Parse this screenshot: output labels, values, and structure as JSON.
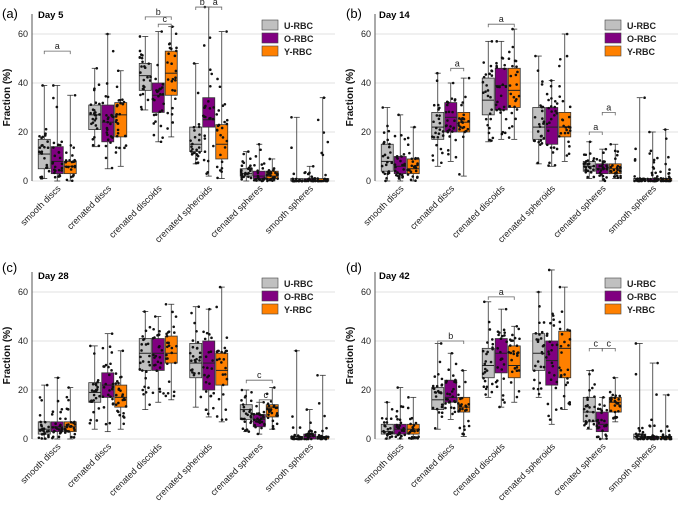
{
  "chart_data": [
    {
      "type": "box",
      "panel_label": "(a)",
      "title": "Day 5",
      "ylabel": "Fraction (%)",
      "ylim": [
        0,
        70
      ],
      "yticks": [
        0,
        20,
        40,
        60
      ],
      "grid": true,
      "legend_position": "top-right",
      "categories": [
        "smooth discs",
        "crenated discs",
        "crenated discoids",
        "crenated spheroids",
        "crenated spheres",
        "smooth spheres"
      ],
      "series": [
        {
          "name": "U-RBC",
          "color": "#c0c0c0",
          "stats": [
            [
              1,
              5,
              11,
              17,
              39
            ],
            [
              14,
              21,
              27,
              31,
              46
            ],
            [
              29,
              37,
              43,
              48,
              59
            ],
            [
              7,
              12,
              15,
              22,
              48
            ],
            [
              0,
              2,
              3,
              5,
              12
            ],
            [
              0,
              0,
              0,
              1,
              26
            ]
          ]
        },
        {
          "name": "O-RBC",
          "color": "#800080",
          "stats": [
            [
              0,
              3,
              8,
              14,
              39
            ],
            [
              5,
              16,
              24,
              31,
              60
            ],
            [
              16,
              28,
              35,
              40,
              61
            ],
            [
              2,
              22,
              25,
              34,
              71
            ],
            [
              0,
              1,
              2,
              4,
              15
            ],
            [
              0,
              0,
              0,
              1,
              6
            ]
          ]
        },
        {
          "name": "Y-RBC",
          "color": "#ff8000",
          "stats": [
            [
              0,
              3,
              6,
              8,
              35
            ],
            [
              6,
              18,
              27,
              32,
              45
            ],
            [
              18,
              35,
              44,
              53,
              63
            ],
            [
              1,
              9,
              15,
              23,
              61
            ],
            [
              0,
              1,
              2,
              4,
              9
            ],
            [
              0,
              0,
              0,
              1,
              34
            ]
          ]
        }
      ],
      "annotations": [
        {
          "label": "a",
          "category": "smooth discs",
          "between": [
            "U-RBC",
            "Y-RBC"
          ],
          "y": 53
        },
        {
          "label": "b",
          "category": "crenated discoids",
          "between": [
            "U-RBC",
            "Y-RBC"
          ],
          "y": 67
        },
        {
          "label": "c",
          "category": "crenated discoids",
          "between": [
            "O-RBC",
            "Y-RBC"
          ],
          "y": 64
        },
        {
          "label": "b",
          "category": "crenated spheroids",
          "between": [
            "U-RBC",
            "O-RBC"
          ],
          "y": 71
        },
        {
          "label": "a",
          "category": "crenated spheroids",
          "between": [
            "O-RBC",
            "Y-RBC"
          ],
          "y": 71
        }
      ]
    },
    {
      "type": "box",
      "panel_label": "(b)",
      "title": "Day 14",
      "ylabel": "Fraction (%)",
      "ylim": [
        0,
        70
      ],
      "yticks": [
        0,
        20,
        40,
        60
      ],
      "grid": true,
      "legend_position": "top-right",
      "categories": [
        "smooth discs",
        "crenated discs",
        "crenated discoids",
        "crenated spheroids",
        "crenated spheres",
        "smooth spheres"
      ],
      "series": [
        {
          "name": "U-RBC",
          "color": "#c0c0c0",
          "stats": [
            [
              0,
              4,
              8,
              15,
              30
            ],
            [
              6,
              17,
              22,
              28,
              44
            ],
            [
              16,
              27,
              33,
              42,
              57
            ],
            [
              7,
              17,
              22,
              30,
              51
            ],
            [
              1,
              4,
              6,
              8,
              16
            ],
            [
              0,
              0,
              1,
              1,
              34
            ]
          ]
        },
        {
          "name": "O-RBC",
          "color": "#800080",
          "stats": [
            [
              0,
              3,
              6,
              10,
              27
            ],
            [
              8,
              20,
              26,
              32,
              40
            ],
            [
              17,
              29,
              39,
              46,
              57
            ],
            [
              6,
              15,
              22,
              30,
              41
            ],
            [
              0,
              3,
              5,
              7,
              13
            ],
            [
              0,
              0,
              0,
              1,
              20
            ]
          ]
        },
        {
          "name": "Y-RBC",
          "color": "#ff8000",
          "stats": [
            [
              0,
              3,
              5,
              9,
              22
            ],
            [
              2,
              20,
              24,
              28,
              42
            ],
            [
              17,
              30,
              37,
              46,
              62
            ],
            [
              8,
              18,
              22,
              28,
              60
            ],
            [
              1,
              3,
              5,
              7,
              15
            ],
            [
              0,
              0,
              1,
              1,
              21
            ]
          ]
        }
      ],
      "annotations": [
        {
          "label": "a",
          "category": "crenated discs",
          "between": [
            "O-RBC",
            "Y-RBC"
          ],
          "y": 46
        },
        {
          "label": "a",
          "category": "crenated discoids",
          "between": [
            "U-RBC",
            "Y-RBC"
          ],
          "y": 64
        },
        {
          "label": "a",
          "category": "crenated spheres",
          "between": [
            "U-RBC",
            "O-RBC"
          ],
          "y": 20
        },
        {
          "label": "a",
          "category": "crenated spheres",
          "between": [
            "O-RBC",
            "Y-RBC"
          ],
          "y": 28
        }
      ]
    },
    {
      "type": "box",
      "panel_label": "(c)",
      "title": "Day 28",
      "ylabel": "Fraction (%)",
      "ylim": [
        0,
        70
      ],
      "yticks": [
        0,
        20,
        40,
        60
      ],
      "grid": true,
      "legend_position": "top-right",
      "categories": [
        "smooth discs",
        "crenated discs",
        "crenated discoids",
        "crenated spheroids",
        "crenated spheres",
        "smooth spheres"
      ],
      "series": [
        {
          "name": "U-RBC",
          "color": "#c0c0c0",
          "stats": [
            [
              0,
              2,
              4,
              7,
              22
            ],
            [
              4,
              15,
              19,
              23,
              38
            ],
            [
              12,
              28,
              35,
              41,
              52
            ],
            [
              13,
              25,
              31,
              39,
              54
            ],
            [
              3,
              8,
              12,
              14,
              20
            ],
            [
              0,
              0,
              1,
              1,
              36
            ]
          ]
        },
        {
          "name": "O-RBC",
          "color": "#800080",
          "stats": [
            [
              0,
              3,
              5,
              7,
              25
            ],
            [
              3,
              17,
              22,
              27,
              43
            ],
            [
              15,
              28,
              35,
              41,
              50
            ],
            [
              9,
              20,
              31,
              40,
              53
            ],
            [
              2,
              5,
              8,
              10,
              15
            ],
            [
              0,
              0,
              1,
              2,
              12
            ]
          ]
        },
        {
          "name": "Y-RBC",
          "color": "#ff8000",
          "stats": [
            [
              0,
              3,
              5,
              7,
              21
            ],
            [
              4,
              13,
              17,
              22,
              36
            ],
            [
              16,
              31,
              35,
              42,
              55
            ],
            [
              7,
              22,
              28,
              35,
              62
            ],
            [
              4,
              9,
              13,
              14,
              21
            ],
            [
              0,
              0,
              1,
              1,
              26
            ]
          ]
        }
      ],
      "annotations": [
        {
          "label": "c",
          "category": "crenated spheres",
          "between": [
            "U-RBC",
            "Y-RBC"
          ],
          "y": 24
        },
        {
          "label": "c",
          "category": "crenated spheres",
          "between": [
            "O-RBC",
            "Y-RBC"
          ],
          "y": 16
        }
      ]
    },
    {
      "type": "box",
      "panel_label": "(d)",
      "title": "Day 42",
      "ylabel": "Fraction (%)",
      "ylim": [
        0,
        70
      ],
      "yticks": [
        0,
        20,
        40,
        60
      ],
      "grid": true,
      "legend_position": "top-right",
      "categories": [
        "smooth discs",
        "crenated discs",
        "crenated discoids",
        "crenated spheroids",
        "crenated spheres",
        "smooth spheres"
      ],
      "series": [
        {
          "name": "U-RBC",
          "color": "#c0c0c0",
          "stats": [
            [
              0,
              2,
              3,
              6,
              15
            ],
            [
              4,
              12,
              16,
              21,
              39
            ],
            [
              17,
              25,
              30,
              37,
              56
            ],
            [
              17,
              28,
              35,
              43,
              60
            ],
            [
              4,
              7,
              11,
              17,
              28
            ],
            [
              0,
              0,
              1,
              2,
              39
            ]
          ]
        },
        {
          "name": "O-RBC",
          "color": "#800080",
          "stats": [
            [
              0,
              2,
              4,
              6,
              21
            ],
            [
              8,
              15,
              17,
              24,
              35
            ],
            [
              13,
              27,
              35,
              41,
              53
            ],
            [
              6,
              22,
              32,
              40,
              69
            ],
            [
              0,
              3,
              6,
              11,
              17
            ],
            [
              0,
              0,
              1,
              1,
              31
            ]
          ]
        },
        {
          "name": "Y-RBC",
          "color": "#ff8000",
          "stats": [
            [
              0,
              2,
              4,
              6,
              17
            ],
            [
              1,
              11,
              13,
              17,
              28
            ],
            [
              15,
              25,
              30,
              38,
              46
            ],
            [
              12,
              25,
              37,
              44,
              62
            ],
            [
              7,
              11,
              15,
              17,
              25
            ],
            [
              0,
              0,
              1,
              1,
              18
            ]
          ]
        }
      ],
      "annotations": [
        {
          "label": "b",
          "category": "crenated discs",
          "between": [
            "U-RBC",
            "Y-RBC"
          ],
          "y": 40
        },
        {
          "label": "a",
          "category": "crenated discoids",
          "between": [
            "U-RBC",
            "Y-RBC"
          ],
          "y": 58
        },
        {
          "label": "c",
          "category": "crenated spheres",
          "between": [
            "U-RBC",
            "O-RBC"
          ],
          "y": 37
        },
        {
          "label": "c",
          "category": "crenated spheres",
          "between": [
            "O-RBC",
            "Y-RBC"
          ],
          "y": 37
        }
      ]
    }
  ]
}
